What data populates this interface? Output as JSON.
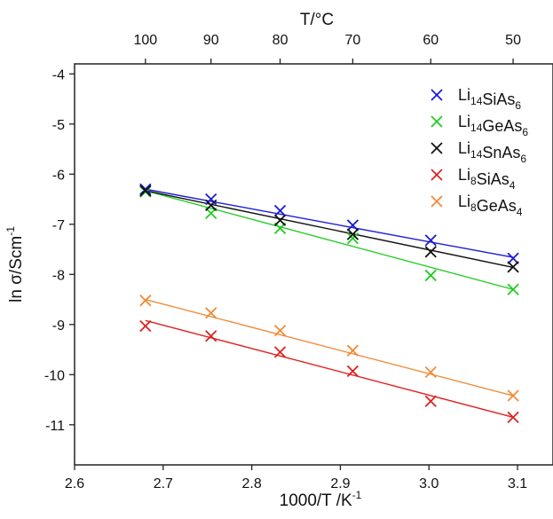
{
  "chart_data": {
    "type": "scatter",
    "title": "",
    "xlabel": "1000/T /K",
    "xlabel_sup": "-1",
    "ylabel": "ln σ/Scm",
    "ylabel_sup": "-1",
    "top_label": "T/°C",
    "xlim": [
      2.6,
      3.14
    ],
    "ylim": [
      -11.8,
      -3.8
    ],
    "grid": false,
    "legend_position": "top-right",
    "x_ticks": [
      {
        "v": 2.6,
        "label": "2.6"
      },
      {
        "v": 2.7,
        "label": "2.7"
      },
      {
        "v": 2.8,
        "label": "2.8"
      },
      {
        "v": 2.9,
        "label": "2.9"
      },
      {
        "v": 3.0,
        "label": "3.0"
      },
      {
        "v": 3.1,
        "label": "3.1"
      }
    ],
    "y_ticks": [
      {
        "v": -4,
        "label": "-4"
      },
      {
        "v": -5,
        "label": "-5"
      },
      {
        "v": -6,
        "label": "-6"
      },
      {
        "v": -7,
        "label": "-7"
      },
      {
        "v": -8,
        "label": "-8"
      },
      {
        "v": -9,
        "label": "-9"
      },
      {
        "v": -10,
        "label": "-10"
      },
      {
        "v": -11,
        "label": "-11"
      }
    ],
    "top_ticks": [
      {
        "v": 2.68,
        "label": "100"
      },
      {
        "v": 2.754,
        "label": "90"
      },
      {
        "v": 2.832,
        "label": "80"
      },
      {
        "v": 2.914,
        "label": "70"
      },
      {
        "v": 3.002,
        "label": "60"
      },
      {
        "v": 3.095,
        "label": "50"
      }
    ],
    "x": [
      2.68,
      2.754,
      2.832,
      2.914,
      3.002,
      3.095
    ],
    "series": [
      {
        "name": "Li14SiAs6",
        "label_base": "Li",
        "label_parts": [
          [
            "Li",
            ""
          ],
          [
            "14",
            "sub"
          ],
          [
            "SiAs",
            ""
          ],
          [
            "6",
            "sub"
          ]
        ],
        "color": "#1a1ad6",
        "values": [
          -6.3,
          -6.5,
          -6.73,
          -7.02,
          -7.32,
          -7.68
        ],
        "fit": [
          -6.3,
          -7.66
        ]
      },
      {
        "name": "Li14GeAs6",
        "label_parts": [
          [
            "Li",
            ""
          ],
          [
            "14",
            "sub"
          ],
          [
            "GeAs",
            ""
          ],
          [
            "6",
            "sub"
          ]
        ],
        "color": "#22cc22",
        "values": [
          -6.35,
          -6.78,
          -7.08,
          -7.28,
          -8.02,
          -8.3
        ],
        "fit": [
          -6.33,
          -8.3
        ]
      },
      {
        "name": "Li14SnAs6",
        "label_parts": [
          [
            "Li",
            ""
          ],
          [
            "14",
            "sub"
          ],
          [
            "SnAs",
            ""
          ],
          [
            "6",
            "sub"
          ]
        ],
        "color": "#111111",
        "values": [
          -6.33,
          -6.62,
          -6.92,
          -7.2,
          -7.55,
          -7.85
        ],
        "fit": [
          -6.33,
          -7.86
        ]
      },
      {
        "name": "Li8SiAs4",
        "label_parts": [
          [
            "Li",
            ""
          ],
          [
            "8",
            "sub"
          ],
          [
            "SiAs",
            ""
          ],
          [
            "4",
            "sub"
          ]
        ],
        "color": "#e02020",
        "values": [
          -9.03,
          -9.23,
          -9.55,
          -9.93,
          -10.53,
          -10.85
        ],
        "fit": [
          -8.92,
          -10.85
        ]
      },
      {
        "name": "Li8GeAs4",
        "label_parts": [
          [
            "Li",
            ""
          ],
          [
            "8",
            "sub"
          ],
          [
            "GeAs",
            ""
          ],
          [
            "4",
            "sub"
          ]
        ],
        "color": "#f08c3a",
        "values": [
          -8.52,
          -8.77,
          -9.12,
          -9.52,
          -9.95,
          -10.42
        ],
        "fit": [
          -8.5,
          -10.42
        ]
      }
    ]
  }
}
